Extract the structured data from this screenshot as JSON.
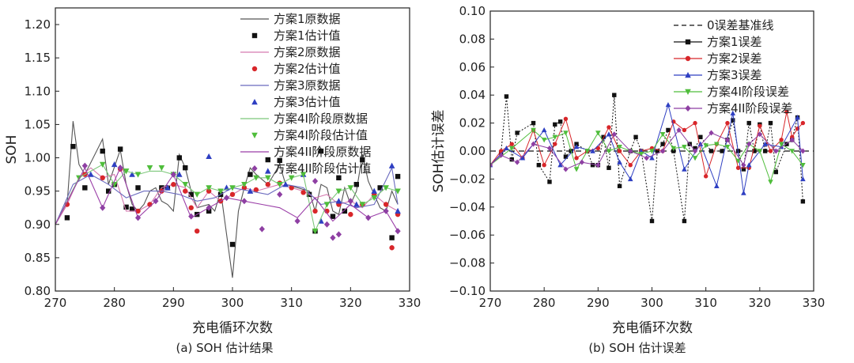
{
  "chart_data": [
    {
      "type": "line",
      "caption": "(a) SOH 估计结果",
      "xlabel": "充电循环次数",
      "ylabel": "SOH",
      "xlim": [
        270,
        330
      ],
      "ylim": [
        0.8,
        1.225
      ],
      "xticks": [
        "270",
        "280",
        "290",
        "300",
        "310",
        "320",
        "330"
      ],
      "yticks": [
        "0.80",
        "0.85",
        "0.90",
        "0.95",
        "1.00",
        "1.05",
        "1.10",
        "1.15",
        "1.20"
      ],
      "legend_position": "top-right",
      "series": [
        {
          "name": "方案1原数据",
          "style": "line",
          "color": "#555555",
          "x": [
            270,
            272,
            273,
            274,
            275,
            278,
            279,
            281,
            282,
            283,
            284,
            285,
            286,
            287,
            288,
            289,
            290,
            291,
            292,
            293,
            294,
            296,
            297,
            298,
            300,
            301,
            302,
            303,
            304,
            306,
            307,
            308,
            309,
            311,
            313,
            314,
            315,
            316,
            317,
            318,
            319,
            320,
            321,
            322,
            323,
            325,
            326,
            327,
            328
          ],
          "y": [
            0.9,
            0.93,
            1.055,
            0.99,
            0.975,
            1.028,
            0.96,
            1.012,
            0.96,
            0.93,
            0.92,
            0.93,
            0.95,
            0.955,
            0.935,
            0.93,
            0.92,
            1.005,
            0.985,
            0.95,
            0.925,
            0.93,
            0.92,
            0.95,
            0.82,
            0.92,
            0.955,
            0.985,
            0.975,
            0.96,
            0.975,
            0.99,
            0.96,
            0.955,
            0.95,
            0.92,
            0.96,
            0.955,
            0.92,
            0.915,
            0.955,
            0.93,
            0.95,
            1.005,
            0.965,
            0.925,
            0.92,
            0.95,
            0.93
          ]
        },
        {
          "name": "方案1估计值",
          "style": "marker",
          "marker": "square",
          "color": "#111111",
          "x": [
            272,
            273,
            275,
            278,
            279,
            280,
            281,
            282,
            283,
            284,
            288,
            289,
            291,
            292,
            293,
            294,
            296,
            298,
            300,
            303,
            306,
            308,
            313,
            314,
            315,
            317,
            318,
            319,
            321,
            322,
            325,
            327,
            328
          ],
          "y": [
            0.91,
            1.017,
            0.955,
            1.01,
            0.95,
            0.96,
            1.013,
            0.926,
            0.923,
            0.955,
            0.955,
            0.955,
            1.0,
            0.985,
            0.945,
            0.915,
            0.92,
            0.945,
            0.87,
            0.975,
            0.997,
            0.996,
            0.945,
            0.89,
            1.01,
            0.912,
            0.97,
            0.92,
            0.96,
            0.997,
            0.955,
            0.88,
            0.972
          ]
        },
        {
          "name": "方案2原数据",
          "style": "line",
          "color": "#d57ab0",
          "x": [
            270,
            272,
            274,
            276,
            278,
            280,
            282,
            284,
            286,
            288,
            290,
            292,
            294,
            296,
            298,
            300,
            302,
            304,
            306,
            308,
            310,
            312,
            314,
            316,
            318,
            320,
            322,
            324,
            326,
            328
          ],
          "y": [
            0.9,
            0.93,
            0.97,
            0.985,
            0.97,
            0.975,
            0.92,
            0.92,
            0.93,
            0.955,
            0.96,
            0.955,
            0.925,
            0.95,
            0.935,
            0.945,
            0.955,
            0.95,
            0.955,
            0.96,
            0.955,
            0.95,
            0.94,
            0.945,
            0.93,
            0.935,
            0.925,
            0.945,
            0.93,
            0.92
          ]
        },
        {
          "name": "方案2估计值",
          "style": "marker",
          "marker": "circle",
          "color": "#d8262a",
          "x": [
            272,
            275,
            278,
            281,
            284,
            286,
            288,
            290,
            292,
            293,
            294,
            296,
            298,
            300,
            302,
            304,
            306,
            308,
            310,
            312,
            314,
            316,
            318,
            320,
            322,
            324,
            326,
            327,
            328
          ],
          "y": [
            0.93,
            0.975,
            0.97,
            0.983,
            0.92,
            0.93,
            0.95,
            0.96,
            0.95,
            0.925,
            0.89,
            0.95,
            0.935,
            0.945,
            0.955,
            0.952,
            0.96,
            0.962,
            0.955,
            0.948,
            0.92,
            0.92,
            0.93,
            0.915,
            0.93,
            0.945,
            0.93,
            0.865,
            0.915
          ]
        },
        {
          "name": "方案3原数据",
          "style": "line",
          "color": "#6b6bbf",
          "x": [
            270,
            273,
            276,
            279,
            282,
            285,
            288,
            291,
            294,
            297,
            300,
            303,
            306,
            309,
            312,
            315,
            318,
            321,
            324,
            327,
            328
          ],
          "y": [
            0.9,
            0.96,
            0.975,
            0.96,
            0.94,
            0.95,
            0.95,
            0.945,
            0.935,
            0.94,
            0.955,
            0.95,
            0.945,
            0.96,
            0.955,
            0.93,
            0.935,
            0.925,
            0.93,
            0.985,
            0.93
          ]
        },
        {
          "name": "方案3估计值",
          "style": "marker",
          "marker": "triangle",
          "color": "#2e3fc2",
          "x": [
            276,
            280,
            283,
            289,
            291,
            296,
            299,
            303,
            306,
            309,
            312,
            315,
            318,
            321,
            324,
            327,
            328
          ],
          "y": [
            0.975,
            0.99,
            0.975,
            0.955,
            0.975,
            1.002,
            0.955,
            0.95,
            0.98,
            0.96,
            0.975,
            0.905,
            0.935,
            0.93,
            0.95,
            0.988,
            0.92
          ]
        },
        {
          "name": "方案4I阶段原数据",
          "style": "line",
          "color": "#7cc77a",
          "x": [
            270,
            274,
            278,
            280,
            282,
            284,
            286,
            288,
            290,
            292,
            294,
            296,
            298,
            300,
            302,
            304,
            306,
            308,
            310,
            312,
            314,
            316,
            318,
            320,
            322,
            324,
            326,
            328
          ],
          "y": [
            0.9,
            0.97,
            0.99,
            0.96,
            0.98,
            0.975,
            0.98,
            0.98,
            0.975,
            0.96,
            0.945,
            0.955,
            0.95,
            0.955,
            0.96,
            0.97,
            0.97,
            0.96,
            0.97,
            0.975,
            0.89,
            0.93,
            0.95,
            0.955,
            0.93,
            0.94,
            0.955,
            0.95
          ]
        },
        {
          "name": "方案4I阶段估计值",
          "style": "marker",
          "marker": "triangle-down",
          "color": "#4fbd3b",
          "x": [
            274,
            278,
            280,
            282,
            284,
            286,
            288,
            290,
            292,
            294,
            296,
            298,
            300,
            302,
            304,
            306,
            308,
            310,
            312,
            314,
            316,
            318,
            320,
            322,
            324,
            326,
            328
          ],
          "y": [
            0.97,
            0.99,
            0.96,
            0.98,
            0.975,
            0.985,
            0.985,
            0.975,
            0.96,
            0.945,
            0.955,
            0.95,
            0.955,
            0.96,
            0.97,
            0.97,
            0.96,
            0.97,
            0.975,
            0.89,
            0.93,
            0.95,
            0.955,
            0.93,
            0.94,
            0.955,
            0.95
          ]
        },
        {
          "name": "方案4II阶段原数据",
          "style": "line",
          "color": "#9b3fa8",
          "x": [
            270,
            275,
            278,
            281,
            284,
            287,
            290,
            293,
            296,
            299,
            302,
            305,
            308,
            311,
            314,
            317,
            320,
            323,
            326,
            328
          ],
          "y": [
            0.9,
            0.985,
            0.925,
            0.985,
            0.91,
            0.935,
            0.975,
            0.91,
            0.925,
            0.94,
            0.935,
            0.93,
            0.925,
            0.91,
            0.94,
            0.905,
            0.93,
            0.91,
            0.92,
            0.89
          ]
        },
        {
          "name": "方案4II阶段估计值",
          "style": "marker",
          "marker": "diamond",
          "color": "#8e3fa3",
          "x": [
            275,
            278,
            281,
            284,
            287,
            290,
            293,
            296,
            299,
            302,
            305,
            308,
            311,
            314,
            316,
            317,
            318,
            320,
            323,
            326,
            328
          ],
          "y": [
            0.988,
            0.925,
            0.985,
            0.91,
            0.935,
            0.975,
            0.912,
            0.925,
            0.94,
            0.935,
            0.893,
            0.945,
            0.905,
            0.965,
            0.9,
            0.88,
            0.885,
            0.935,
            0.91,
            0.92,
            0.89
          ]
        }
      ]
    },
    {
      "type": "line",
      "caption": "(b) SOH 估计误差",
      "xlabel": "充电循环次数",
      "ylabel": "SOH估计误差",
      "xlim": [
        270,
        330
      ],
      "ylim": [
        -0.1,
        0.1
      ],
      "xticks": [
        "270",
        "280",
        "290",
        "300",
        "310",
        "320",
        "330"
      ],
      "yticks": [
        "0.10",
        "0.08",
        "0.06",
        "0.04",
        "0.02",
        "0.00",
        "−0.02",
        "−0.04",
        "−0.06",
        "−0.08",
        "−0.10"
      ],
      "legend_position": "top-right",
      "series": [
        {
          "name": "0误差基准线",
          "style": "dashed",
          "color": "#111111",
          "x": [
            270,
            330
          ],
          "y": [
            0,
            0
          ]
        },
        {
          "name": "方案1误差",
          "style": "line-marker",
          "marker": "square",
          "color": "#111111",
          "x": [
            272,
            273,
            274,
            275,
            278,
            279,
            281,
            282,
            283,
            284,
            285,
            286,
            288,
            289,
            290,
            291,
            292,
            293,
            294,
            296,
            297,
            298,
            300,
            301,
            302,
            303,
            304,
            306,
            307,
            308,
            309,
            311,
            313,
            314,
            315,
            316,
            317,
            318,
            319,
            320,
            321,
            322,
            323,
            325,
            326,
            327,
            328
          ],
          "y": [
            -0.001,
            0.039,
            -0.006,
            0.013,
            0.02,
            -0.01,
            -0.022,
            0.019,
            0.021,
            -0.004,
            0.0,
            0.005,
            0.0,
            -0.01,
            -0.01,
            0.01,
            -0.012,
            0.04,
            -0.025,
            0.0,
            0.01,
            0.0,
            -0.05,
            0.0,
            0.005,
            0.015,
            0.0,
            -0.05,
            0.005,
            0.002,
            0.01,
            0.0,
            0.0,
            0.008,
            0.022,
            0.0,
            -0.013,
            0.02,
            0.0,
            0.019,
            0.0,
            0.02,
            -0.015,
            0.005,
            0.008,
            0.024,
            -0.036
          ]
        },
        {
          "name": "方案2误差",
          "style": "line-marker",
          "marker": "circle",
          "color": "#d8262a",
          "x": [
            270,
            272,
            274,
            276,
            278,
            280,
            282,
            284,
            286,
            288,
            290,
            292,
            294,
            296,
            298,
            300,
            302,
            304,
            306,
            308,
            310,
            312,
            314,
            316,
            318,
            320,
            322,
            324,
            325,
            326,
            327,
            328
          ],
          "y": [
            -0.01,
            0.0,
            0.005,
            -0.005,
            0.015,
            -0.01,
            0.005,
            0.023,
            -0.005,
            0.0,
            0.002,
            0.017,
            0.0,
            -0.01,
            0.0,
            0.002,
            0.0,
            0.021,
            0.015,
            0.02,
            -0.018,
            0.005,
            0.02,
            -0.012,
            -0.012,
            0.018,
            0.0,
            0.008,
            0.028,
            0.01,
            0.016,
            0.02
          ]
        },
        {
          "name": "方案3误差",
          "style": "line-marker",
          "marker": "triangle",
          "color": "#2e3fc2",
          "x": [
            270,
            273,
            276,
            280,
            283,
            286,
            289,
            292,
            294,
            296,
            298,
            300,
            303,
            306,
            309,
            312,
            315,
            317,
            318,
            321,
            324,
            327,
            328
          ],
          "y": [
            -0.01,
            0.002,
            -0.005,
            0.015,
            -0.01,
            0.003,
            0.0,
            0.012,
            -0.008,
            -0.02,
            0.0,
            -0.005,
            0.033,
            -0.013,
            0.005,
            -0.025,
            0.027,
            -0.03,
            -0.01,
            0.005,
            0.003,
            0.024,
            -0.02
          ]
        },
        {
          "name": "方案4I阶段误差",
          "style": "line-marker",
          "marker": "triangle-down",
          "color": "#4fbd3b",
          "x": [
            270,
            274,
            278,
            280,
            282,
            284,
            286,
            288,
            290,
            292,
            294,
            296,
            298,
            300,
            302,
            304,
            306,
            308,
            310,
            312,
            314,
            316,
            318,
            320,
            322,
            324,
            326,
            328
          ],
          "y": [
            -0.01,
            0.002,
            0.015,
            0.008,
            0.01,
            0.013,
            -0.013,
            0.0,
            0.013,
            0.0,
            0.003,
            0.0,
            -0.002,
            0.0,
            0.012,
            0.002,
            0.003,
            -0.005,
            0.004,
            0.005,
            0.003,
            -0.007,
            0.005,
            0.0,
            -0.022,
            0.005,
            0.0,
            -0.01
          ]
        },
        {
          "name": "方案4II阶段误差",
          "style": "line-marker",
          "marker": "diamond",
          "color": "#8e3fa3",
          "x": [
            270,
            272,
            275,
            278,
            281,
            284,
            287,
            290,
            293,
            296,
            299,
            302,
            305,
            308,
            311,
            314,
            317,
            318,
            320,
            323,
            326,
            328
          ],
          "y": [
            -0.01,
            -0.003,
            -0.008,
            0.005,
            0.002,
            -0.013,
            -0.008,
            -0.01,
            0.012,
            0.0,
            -0.005,
            0.0,
            0.015,
            0.0,
            0.013,
            0.008,
            -0.01,
            0.005,
            0.012,
            0.0,
            0.008,
            0.0
          ]
        }
      ]
    }
  ]
}
